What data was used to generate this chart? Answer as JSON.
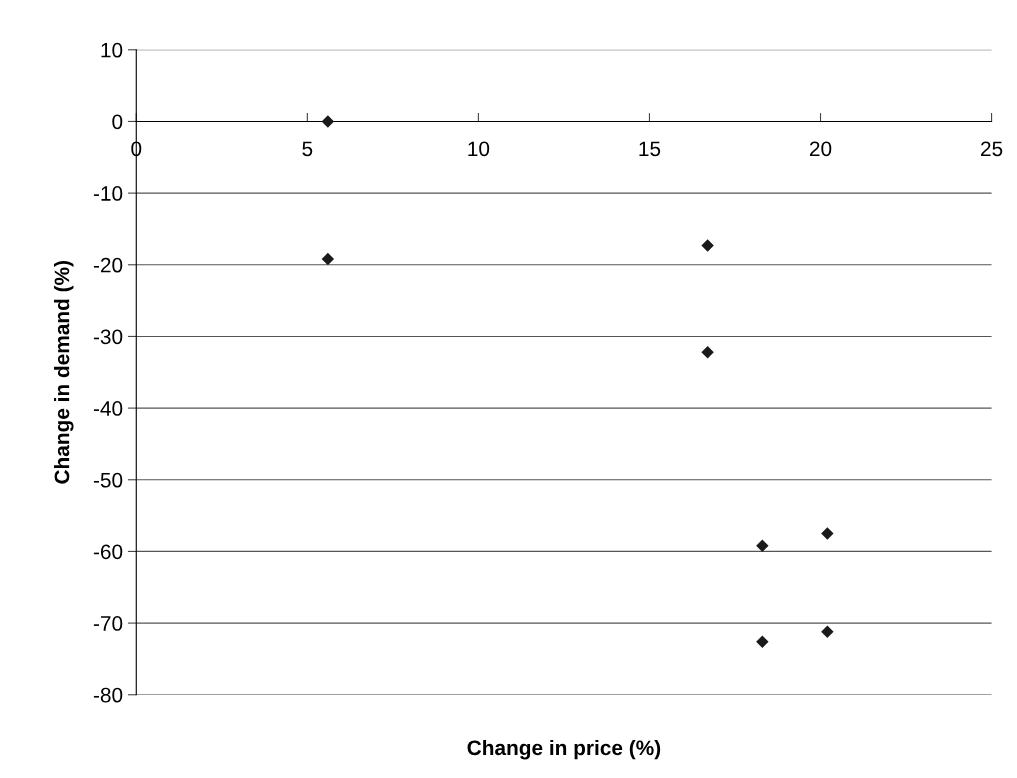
{
  "chart_data": {
    "type": "scatter",
    "xlabel": "Change in price (%)",
    "ylabel": "Change in demand (%)",
    "x": [
      5.6,
      5.6,
      16.7,
      16.7,
      18.3,
      20.2,
      18.3,
      20.2
    ],
    "values": [
      0,
      -19.2,
      -17.3,
      -32.2,
      -59.2,
      -57.5,
      -72.6,
      -71.2
    ],
    "color": "#1a1a1a",
    "marker": "diamond",
    "xlim": [
      0,
      25
    ],
    "xticks": [
      0,
      5,
      10,
      15,
      20,
      25
    ],
    "ylim": [
      -80,
      10
    ],
    "yticks": [
      -80,
      -70,
      -60,
      -50,
      -40,
      -30,
      -20,
      -10,
      0,
      10
    ],
    "grid": "y"
  }
}
